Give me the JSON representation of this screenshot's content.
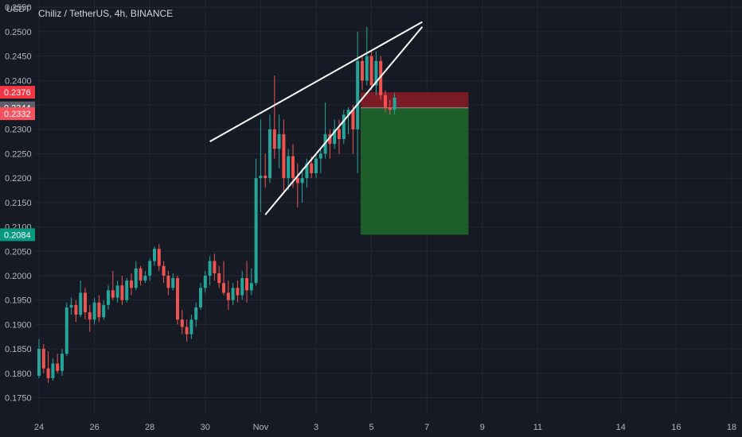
{
  "header": {
    "currency": "USDT",
    "title": "Chiliz / TetherUS, 4h, BINANCE"
  },
  "colors": {
    "background": "#161a25",
    "up": "#26a69a",
    "down": "#ef5350",
    "grid": "#232733",
    "axis_text": "#b2b5be",
    "stop_zone": "#8b1c26",
    "target_zone": "#1e6b2a",
    "trendline": "#ffffff"
  },
  "chart_data": {
    "type": "candlestick",
    "title": "Chiliz / TetherUS, 4h, BINANCE",
    "ylabel": "USDT",
    "ylim": [
      0.1715,
      0.2565
    ],
    "y_ticks": [
      "0.1750",
      "0.1800",
      "0.1850",
      "0.1900",
      "0.1950",
      "0.2000",
      "0.2050",
      "0.2100",
      "0.2150",
      "0.2200",
      "0.2250",
      "0.2300",
      "0.2350",
      "0.2400",
      "0.2450",
      "0.2500",
      "0.2550"
    ],
    "x_ticks": [
      {
        "label": "24",
        "day": 0
      },
      {
        "label": "26",
        "day": 2
      },
      {
        "label": "28",
        "day": 4
      },
      {
        "label": "30",
        "day": 6
      },
      {
        "label": "Nov",
        "day": 8
      },
      {
        "label": "3",
        "day": 10
      },
      {
        "label": "5",
        "day": 12
      },
      {
        "label": "7",
        "day": 14
      },
      {
        "label": "9",
        "day": 16
      },
      {
        "label": "11",
        "day": 18
      },
      {
        "label": "14",
        "day": 21
      },
      {
        "label": "16",
        "day": 23
      },
      {
        "label": "18",
        "day": 25
      }
    ],
    "price_labels": [
      {
        "value": "0.2376",
        "color": "#f23645"
      },
      {
        "value": "0.2344",
        "color": "#5d606b"
      },
      {
        "value": "0.2332",
        "color": "#f7525f"
      },
      {
        "value": "0.2084",
        "color": "#089981"
      }
    ],
    "candles_ohlc": [
      [
        0.1795,
        0.187,
        0.179,
        0.185
      ],
      [
        0.185,
        0.186,
        0.18,
        0.181
      ],
      [
        0.181,
        0.1845,
        0.178,
        0.179
      ],
      [
        0.179,
        0.183,
        0.1785,
        0.182
      ],
      [
        0.182,
        0.184,
        0.18,
        0.1805
      ],
      [
        0.1805,
        0.185,
        0.1795,
        0.184
      ],
      [
        0.184,
        0.1945,
        0.1835,
        0.1935
      ],
      [
        0.1935,
        0.1955,
        0.192,
        0.194
      ],
      [
        0.194,
        0.195,
        0.1905,
        0.192
      ],
      [
        0.192,
        0.199,
        0.1915,
        0.1965
      ],
      [
        0.1965,
        0.1975,
        0.191,
        0.1925
      ],
      [
        0.1925,
        0.194,
        0.1885,
        0.191
      ],
      [
        0.191,
        0.1955,
        0.19,
        0.1945
      ],
      [
        0.1945,
        0.196,
        0.1905,
        0.1915
      ],
      [
        0.1915,
        0.195,
        0.191,
        0.194
      ],
      [
        0.194,
        0.198,
        0.193,
        0.197
      ],
      [
        0.197,
        0.201,
        0.195,
        0.1955
      ],
      [
        0.1955,
        0.199,
        0.1945,
        0.198
      ],
      [
        0.198,
        0.2,
        0.194,
        0.195
      ],
      [
        0.195,
        0.1995,
        0.1945,
        0.199
      ],
      [
        0.199,
        0.2005,
        0.196,
        0.1975
      ],
      [
        0.1975,
        0.203,
        0.197,
        0.2015
      ],
      [
        0.2015,
        0.202,
        0.198,
        0.199
      ],
      [
        0.199,
        0.201,
        0.1985,
        0.2
      ],
      [
        0.2,
        0.2035,
        0.199,
        0.203
      ],
      [
        0.203,
        0.206,
        0.202,
        0.2055
      ],
      [
        0.2055,
        0.2065,
        0.201,
        0.202
      ],
      [
        0.202,
        0.203,
        0.1985,
        0.2
      ],
      [
        0.2,
        0.201,
        0.196,
        0.1975
      ],
      [
        0.1975,
        0.2005,
        0.197,
        0.1995
      ],
      [
        0.1995,
        0.2,
        0.19,
        0.191
      ],
      [
        0.191,
        0.193,
        0.188,
        0.1895
      ],
      [
        0.1895,
        0.191,
        0.1865,
        0.188
      ],
      [
        0.188,
        0.192,
        0.187,
        0.191
      ],
      [
        0.191,
        0.1945,
        0.1895,
        0.1935
      ],
      [
        0.1935,
        0.1985,
        0.193,
        0.1975
      ],
      [
        0.1975,
        0.201,
        0.1965,
        0.2
      ],
      [
        0.2,
        0.204,
        0.198,
        0.203
      ],
      [
        0.203,
        0.2045,
        0.199,
        0.2005
      ],
      [
        0.2005,
        0.202,
        0.1975,
        0.1985
      ],
      [
        0.1985,
        0.203,
        0.196,
        0.1965
      ],
      [
        0.1965,
        0.199,
        0.193,
        0.195
      ],
      [
        0.195,
        0.1985,
        0.194,
        0.1975
      ],
      [
        0.1975,
        0.199,
        0.1945,
        0.196
      ],
      [
        0.196,
        0.201,
        0.195,
        0.1995
      ],
      [
        0.1995,
        0.203,
        0.1945,
        0.197
      ],
      [
        0.197,
        0.2015,
        0.196,
        0.1985
      ],
      [
        0.1985,
        0.224,
        0.198,
        0.22
      ],
      [
        0.22,
        0.232,
        0.213,
        0.2205
      ],
      [
        0.2205,
        0.225,
        0.218,
        0.22
      ],
      [
        0.22,
        0.233,
        0.219,
        0.23
      ],
      [
        0.23,
        0.241,
        0.224,
        0.226
      ],
      [
        0.226,
        0.233,
        0.222,
        0.229
      ],
      [
        0.229,
        0.232,
        0.217,
        0.22
      ],
      [
        0.22,
        0.226,
        0.2175,
        0.2245
      ],
      [
        0.2245,
        0.227,
        0.218,
        0.22
      ],
      [
        0.22,
        0.223,
        0.214,
        0.219
      ],
      [
        0.219,
        0.222,
        0.215,
        0.22
      ],
      [
        0.22,
        0.224,
        0.218,
        0.223
      ],
      [
        0.223,
        0.2245,
        0.22,
        0.221
      ],
      [
        0.221,
        0.225,
        0.22,
        0.224
      ],
      [
        0.224,
        0.226,
        0.221,
        0.225
      ],
      [
        0.225,
        0.2355,
        0.224,
        0.229
      ],
      [
        0.229,
        0.23,
        0.224,
        0.227
      ],
      [
        0.227,
        0.232,
        0.226,
        0.23
      ],
      [
        0.23,
        0.232,
        0.225,
        0.228
      ],
      [
        0.228,
        0.234,
        0.227,
        0.233
      ],
      [
        0.233,
        0.2345,
        0.229,
        0.234
      ],
      [
        0.234,
        0.235,
        0.225,
        0.23
      ],
      [
        0.23,
        0.25,
        0.221,
        0.244
      ],
      [
        0.244,
        0.245,
        0.238,
        0.24
      ],
      [
        0.24,
        0.251,
        0.239,
        0.245
      ],
      [
        0.245,
        0.246,
        0.238,
        0.239
      ],
      [
        0.239,
        0.246,
        0.237,
        0.244
      ],
      [
        0.244,
        0.245,
        0.236,
        0.237
      ],
      [
        0.237,
        0.238,
        0.2335,
        0.2345
      ],
      [
        0.2345,
        0.236,
        0.233,
        0.234
      ],
      [
        0.234,
        0.2375,
        0.233,
        0.2365
      ]
    ],
    "position_tool": {
      "entry": 0.2344,
      "stop": 0.2376,
      "target": 0.2084,
      "start_candle": 70,
      "end_candle": 93
    },
    "trendlines": [
      {
        "from": [
          37,
          0.2275
        ],
        "to": [
          83,
          0.252
        ]
      },
      {
        "from": [
          49,
          0.2125
        ],
        "to": [
          83,
          0.251
        ]
      }
    ],
    "grid": true
  }
}
